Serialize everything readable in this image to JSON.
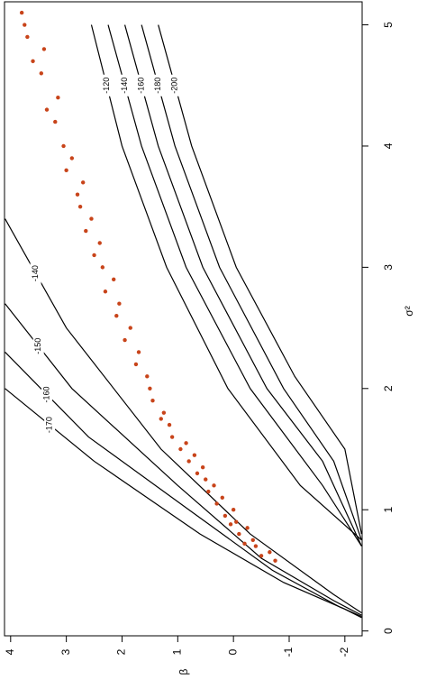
{
  "chart_data": {
    "type": "scatter",
    "xlabel": "σ²",
    "ylabel": "β",
    "xlim": [
      -0.04,
      5.19
    ],
    "ylim": [
      -2.31,
      4.11
    ],
    "xticks": [
      0,
      1,
      2,
      3,
      4,
      5
    ],
    "yticks": [
      -2,
      -1,
      0,
      1,
      2,
      3,
      4
    ],
    "series": [
      {
        "color": "#c8441a",
        "x": [
          0.58,
          0.62,
          0.65,
          0.7,
          0.72,
          0.75,
          0.8,
          0.85,
          0.88,
          0.9,
          0.95,
          1.0,
          1.05,
          1.1,
          1.15,
          1.2,
          1.25,
          1.3,
          1.35,
          1.4,
          1.45,
          1.5,
          1.55,
          1.6,
          1.7,
          1.75,
          1.8,
          1.9,
          2.0,
          2.1,
          2.2,
          2.3,
          2.4,
          2.5,
          2.6,
          2.7,
          2.8,
          2.9,
          3.0,
          3.1,
          3.2,
          3.3,
          3.4,
          3.5,
          3.6,
          3.7,
          3.8,
          3.9,
          4.0,
          4.2,
          4.3,
          4.4,
          4.6,
          4.7,
          4.8,
          4.9,
          5.0,
          5.1
        ],
        "y": [
          -0.75,
          -0.5,
          -0.65,
          -0.4,
          -0.2,
          -0.35,
          -0.1,
          -0.25,
          0.05,
          -0.05,
          0.15,
          0.0,
          0.3,
          0.2,
          0.45,
          0.35,
          0.5,
          0.65,
          0.55,
          0.8,
          0.7,
          0.95,
          0.85,
          1.1,
          1.15,
          1.3,
          1.25,
          1.45,
          1.5,
          1.55,
          1.75,
          1.7,
          1.95,
          1.85,
          2.1,
          2.05,
          2.3,
          2.15,
          2.35,
          2.5,
          2.4,
          2.65,
          2.55,
          2.75,
          2.8,
          2.7,
          3.0,
          2.9,
          3.05,
          3.2,
          3.35,
          3.15,
          3.45,
          3.6,
          3.4,
          3.7,
          3.75,
          3.8
        ]
      }
    ],
    "contours": [
      {
        "level": -120,
        "color": "#000000",
        "x": [
          5.0,
          4.0,
          3.0,
          2.0,
          1.2,
          0.75
        ],
        "y": [
          2.55,
          2.0,
          1.2,
          0.1,
          -1.2,
          -2.3
        ]
      },
      {
        "level": -140,
        "color": "#000000",
        "x": [
          5.0,
          4.0,
          3.0,
          2.0,
          1.2,
          0.7
        ],
        "y": [
          2.25,
          1.65,
          0.85,
          -0.3,
          -1.6,
          -2.3
        ]
      },
      {
        "level": -160,
        "color": "#000000",
        "x": [
          5.0,
          4.0,
          3.0,
          2.0,
          1.4,
          0.7
        ],
        "y": [
          1.95,
          1.35,
          0.55,
          -0.6,
          -1.6,
          -2.3
        ]
      },
      {
        "level": -180,
        "color": "#000000",
        "x": [
          5.0,
          4.0,
          3.0,
          2.0,
          1.4,
          0.75
        ],
        "y": [
          1.65,
          1.05,
          0.25,
          -0.9,
          -1.8,
          -2.3
        ]
      },
      {
        "level": -200,
        "color": "#000000",
        "x": [
          5.0,
          4.0,
          3.0,
          2.1,
          1.5,
          0.8
        ],
        "y": [
          1.35,
          0.75,
          -0.05,
          -1.1,
          -2.0,
          -2.3
        ]
      },
      {
        "level": -140,
        "color": "#000000",
        "x": [
          3.4,
          2.5,
          1.5,
          0.8,
          0.3,
          0.15
        ],
        "y": [
          4.1,
          3.0,
          1.3,
          -0.3,
          -1.8,
          -2.3
        ]
      },
      {
        "level": -150,
        "color": "#000000",
        "x": [
          2.7,
          2.0,
          1.2,
          0.6,
          0.25,
          0.13
        ],
        "y": [
          4.1,
          2.9,
          1.0,
          -0.5,
          -1.8,
          -2.3
        ]
      },
      {
        "level": -160,
        "color": "#000000",
        "x": [
          2.3,
          1.6,
          1.0,
          0.5,
          0.2,
          0.12
        ],
        "y": [
          4.1,
          2.6,
          0.8,
          -0.7,
          -1.9,
          -2.3
        ]
      },
      {
        "level": -170,
        "color": "#000000",
        "x": [
          2.0,
          1.4,
          0.8,
          0.4,
          0.18,
          0.11
        ],
        "y": [
          4.1,
          2.5,
          0.6,
          -0.9,
          -2.0,
          -2.3
        ]
      }
    ]
  }
}
